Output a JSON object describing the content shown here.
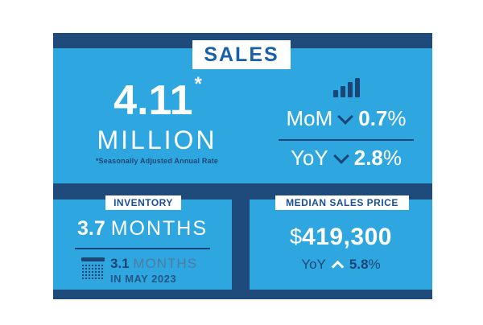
{
  "colors": {
    "background": "#FFFFFF",
    "panel_blue": "#2EA7E0",
    "frame_navy": "#1E4A7C",
    "text_navy": "#1C4577",
    "sales_title_blue": "#1A5FAC",
    "section_title_blue": "#1A4F96",
    "muted_blue": "#4E7BA3",
    "white": "#FFFFFF"
  },
  "sales": {
    "title": "SALES",
    "value": "4.11",
    "value_asterisk": "*",
    "unit": "MILLION",
    "footnote": "*Seasonally Adjusted Annual Rate",
    "mom": {
      "label": "MoM",
      "direction": "down",
      "value": "0.7",
      "percent": "%"
    },
    "yoy": {
      "label": "YoY",
      "direction": "down",
      "value": "2.8",
      "percent": "%"
    }
  },
  "inventory": {
    "title": "INVENTORY",
    "value": "3.7",
    "unit": "MONTHS",
    "prior_value": "3.1",
    "prior_unit": "MONTHS",
    "prior_period": "IN MAY 2023"
  },
  "median_sales_price": {
    "title": "MEDIAN SALES PRICE",
    "currency_symbol": "$",
    "value": "419,300",
    "yoy": {
      "label": "YoY",
      "direction": "up",
      "value": "5.8",
      "percent": "%"
    }
  },
  "chart_data": {
    "type": "table",
    "title": "SALES",
    "metrics": [
      {
        "label": "Sales",
        "value": 4.11,
        "unit": "million",
        "note": "Seasonally Adjusted Annual Rate",
        "mom_change_pct": -0.7,
        "yoy_change_pct": -2.8
      },
      {
        "label": "Inventory",
        "value": 3.7,
        "unit": "months",
        "prior_value": 3.1,
        "prior_unit": "months",
        "prior_period": "May 2023"
      },
      {
        "label": "Median Sales Price",
        "value": 419300,
        "unit": "USD",
        "yoy_change_pct": 5.8
      }
    ]
  }
}
